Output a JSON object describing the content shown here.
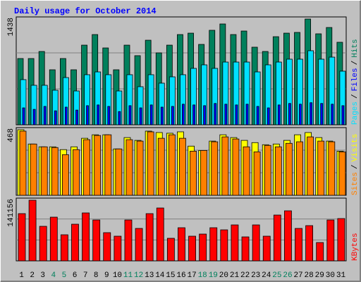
{
  "chart_data": [
    {
      "type": "bar",
      "title": "Daily usage for October 2014",
      "series": [
        {
          "name": "Hits",
          "color": "#00805C",
          "values": [
            901,
            901,
            997,
            748,
            901,
            748,
            1083,
            1227,
            1045,
            748,
            1083,
            940,
            1150,
            978,
            1083,
            1227,
            1246,
            1093,
            1285,
            1371,
            1227,
            1275,
            1055,
            997,
            1198,
            1246,
            1256,
            1438,
            1237,
            1323,
            1122
          ]
        },
        {
          "name": "Files",
          "color": "#0000FF",
          "values": [
            230,
            210,
            250,
            190,
            240,
            200,
            260,
            270,
            250,
            180,
            260,
            230,
            270,
            240,
            250,
            280,
            270,
            260,
            290,
            280,
            270,
            280,
            250,
            230,
            270,
            290,
            280,
            300,
            290,
            280,
            260
          ]
        },
        {
          "name": "Pages",
          "color": "#00E0FF",
          "values": [
            614,
            537,
            537,
            470,
            642,
            460,
            681,
            719,
            681,
            460,
            681,
            518,
            681,
            566,
            652,
            681,
            767,
            815,
            767,
            853,
            853,
            853,
            719,
            815,
            853,
            892,
            892,
            1007,
            892,
            920,
            729
          ]
        }
      ],
      "ylim": [
        0,
        1438
      ],
      "yticks": [
        1438
      ],
      "separator": "/"
    },
    {
      "type": "bar",
      "series": [
        {
          "name": "Visits",
          "color": "#FFFF00",
          "values": [
            468,
            366,
            346,
            346,
            326,
            346,
            407,
            432,
            432,
            331,
            412,
            392,
            458,
            448,
            443,
            453,
            351,
            320,
            387,
            432,
            412,
            392,
            376,
            361,
            366,
            392,
            432,
            448,
            412,
            387,
            315
          ]
        },
        {
          "name": "Sites",
          "color": "#FF8000",
          "values": [
            458,
            366,
            346,
            341,
            290,
            326,
            397,
            427,
            432,
            331,
            397,
            387,
            453,
            407,
            432,
            407,
            315,
            320,
            382,
            417,
            402,
            346,
            310,
            356,
            346,
            371,
            382,
            417,
            387,
            382,
            310
          ]
        }
      ],
      "ylim": [
        0,
        468
      ],
      "yticks": [
        468
      ],
      "separator": "/"
    },
    {
      "type": "bar",
      "series": [
        {
          "name": "KBytes",
          "color": "#FF0000",
          "values": [
            109950,
            141156,
            80410,
            101740,
            60720,
            85330,
            111590,
            95180,
            65640,
            57440,
            95180,
            75490,
            109950,
            123080,
            52510,
            77130,
            57440,
            62360,
            77130,
            72200,
            83690,
            55790,
            83690,
            57440,
            106670,
            116510,
            75490,
            82050,
            42670,
            95180,
            98460
          ]
        }
      ],
      "ylim": [
        0,
        141156
      ],
      "yticks": [
        141156
      ],
      "categories": [
        "1",
        "2",
        "3",
        "4",
        "5",
        "6",
        "7",
        "8",
        "9",
        "10",
        "11",
        "12",
        "13",
        "14",
        "15",
        "16",
        "17",
        "18",
        "19",
        "20",
        "21",
        "22",
        "23",
        "24",
        "25",
        "26",
        "27",
        "28",
        "29",
        "30",
        "31"
      ],
      "category_colors": [
        "#000000",
        "#000000",
        "#000000",
        "#00805C",
        "#00805C",
        "#000000",
        "#000000",
        "#000000",
        "#000000",
        "#000000",
        "#00805C",
        "#00805C",
        "#000000",
        "#000000",
        "#000000",
        "#000000",
        "#000000",
        "#00805C",
        "#00805C",
        "#000000",
        "#000000",
        "#000000",
        "#000000",
        "#000000",
        "#00805C",
        "#00805C",
        "#000000",
        "#000000",
        "#000000",
        "#000000",
        "#000000"
      ]
    }
  ]
}
